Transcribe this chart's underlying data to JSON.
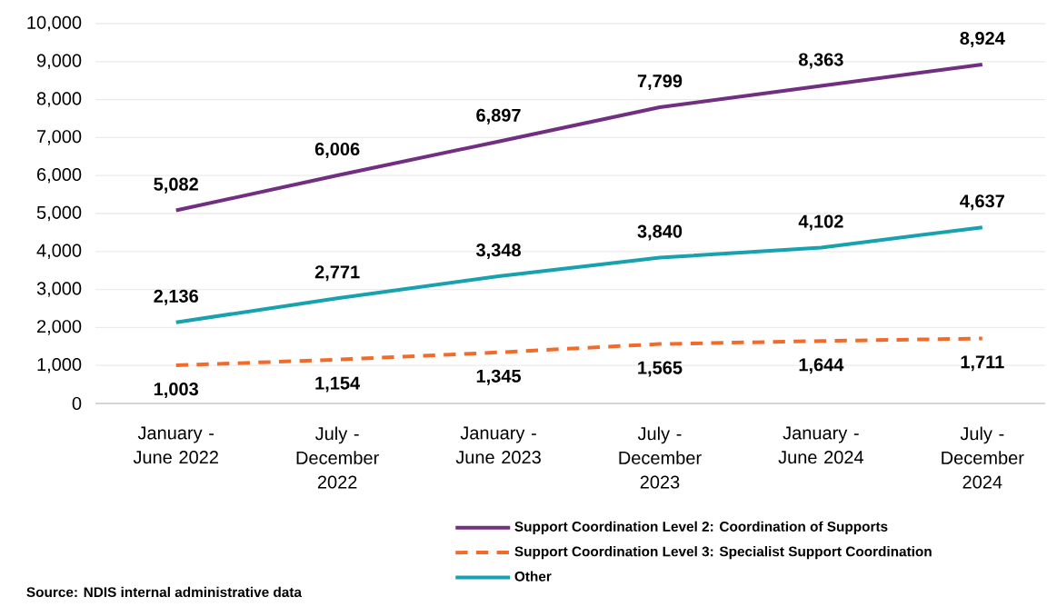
{
  "chart_data": {
    "type": "line",
    "categories": [
      "January - June 2022",
      "July - December 2022",
      "January - June 2023",
      "July - December 2023",
      "January - June 2024",
      "July - December 2024"
    ],
    "series": [
      {
        "name": "Support Coordination Level 2: Coordination of Supports",
        "color": "#702f80",
        "line_style": "solid",
        "values": [
          5082,
          6006,
          6897,
          7799,
          8363,
          8924
        ],
        "value_labels": [
          "5,082",
          "6,006",
          "6,897",
          "7,799",
          "8,363",
          "8,924"
        ]
      },
      {
        "name": "Support Coordination Level 3: Specialist Support Coordination",
        "color": "#f26b2b",
        "line_style": "dashed",
        "values": [
          1003,
          1154,
          1345,
          1565,
          1644,
          1711
        ],
        "value_labels": [
          "1,003",
          "1,154",
          "1,345",
          "1,565",
          "1,644",
          "1,711"
        ]
      },
      {
        "name": "Other",
        "color": "#17a2ad",
        "line_style": "solid",
        "values": [
          2136,
          2771,
          3348,
          3840,
          4102,
          4637
        ],
        "value_labels": [
          "2,136",
          "2,771",
          "3,348",
          "3,840",
          "4,102",
          "4,637"
        ]
      }
    ],
    "ylim": [
      0,
      10000
    ],
    "yticks": [
      {
        "value": 0,
        "label": "0"
      },
      {
        "value": 1000,
        "label": "1,000"
      },
      {
        "value": 2000,
        "label": "2,000"
      },
      {
        "value": 3000,
        "label": "3,000"
      },
      {
        "value": 4000,
        "label": "4,000"
      },
      {
        "value": 5000,
        "label": "5,000"
      },
      {
        "value": 6000,
        "label": "6,000"
      },
      {
        "value": 7000,
        "label": "7,000"
      },
      {
        "value": 8000,
        "label": "8,000"
      },
      {
        "value": 9000,
        "label": "9,000"
      },
      {
        "value": 10000,
        "label": "10,000"
      }
    ],
    "grid": "y",
    "legend": "bottom",
    "marker": "none",
    "annotations": [
      "Source:  NDIS internal administrative data"
    ]
  }
}
